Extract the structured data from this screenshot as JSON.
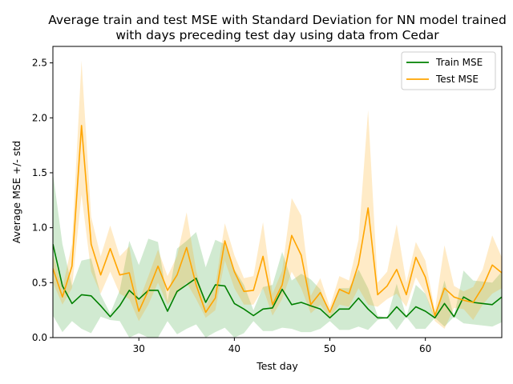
{
  "chart_data": {
    "type": "line",
    "title": "Average train and test MSE with Standard Deviation for NN model trained\nwith days preceding test day using data from Cedar",
    "xlabel": "Test day",
    "ylabel": "Average MSE +/- std",
    "xlim": [
      21,
      68
    ],
    "ylim": [
      0,
      2.65
    ],
    "xticks": [
      30,
      40,
      50,
      60
    ],
    "yticks": [
      0.0,
      0.5,
      1.0,
      1.5,
      2.0,
      2.5
    ],
    "xtick_labels": [
      "30",
      "40",
      "50",
      "60"
    ],
    "ytick_labels": [
      "0.0",
      "0.5",
      "1.0",
      "1.5",
      "2.0",
      "2.5"
    ],
    "legend_position": "top-right",
    "x": [
      21,
      22,
      23,
      24,
      25,
      26,
      27,
      28,
      29,
      30,
      31,
      32,
      33,
      34,
      35,
      36,
      37,
      38,
      39,
      40,
      41,
      42,
      43,
      44,
      45,
      46,
      47,
      48,
      49,
      50,
      51,
      52,
      53,
      54,
      55,
      56,
      57,
      58,
      59,
      60,
      61,
      62,
      63,
      64,
      65,
      66,
      67,
      68
    ],
    "series": [
      {
        "name": "Train MSE",
        "color": "#008000",
        "band_color": "#2ca02c",
        "values": [
          0.85,
          0.47,
          0.31,
          0.39,
          0.38,
          0.29,
          0.19,
          0.29,
          0.43,
          0.35,
          0.43,
          0.43,
          0.24,
          0.42,
          0.48,
          0.54,
          0.32,
          0.48,
          0.47,
          0.31,
          0.26,
          0.2,
          0.26,
          0.27,
          0.44,
          0.3,
          0.32,
          0.29,
          0.26,
          0.18,
          0.26,
          0.26,
          0.36,
          0.26,
          0.18,
          0.18,
          0.28,
          0.19,
          0.28,
          0.24,
          0.18,
          0.31,
          0.19,
          0.37,
          0.32,
          0.31,
          0.3,
          0.37
        ],
        "lower": [
          0.2,
          0.05,
          0.15,
          0.08,
          0.04,
          0.19,
          0.16,
          0.15,
          0.0,
          0.04,
          0.0,
          0.0,
          0.15,
          0.03,
          0.08,
          0.12,
          0.0,
          0.05,
          0.09,
          0.0,
          0.04,
          0.15,
          0.06,
          0.06,
          0.09,
          0.08,
          0.05,
          0.05,
          0.08,
          0.15,
          0.07,
          0.07,
          0.1,
          0.07,
          0.16,
          0.18,
          0.07,
          0.19,
          0.08,
          0.08,
          0.18,
          0.1,
          0.19,
          0.13,
          0.12,
          0.11,
          0.1,
          0.14
        ],
        "upper": [
          1.5,
          0.85,
          0.47,
          0.7,
          0.72,
          0.39,
          0.22,
          0.43,
          0.88,
          0.66,
          0.9,
          0.87,
          0.33,
          0.81,
          0.88,
          0.96,
          0.64,
          0.89,
          0.85,
          0.62,
          0.48,
          0.25,
          0.46,
          0.48,
          0.78,
          0.52,
          0.58,
          0.53,
          0.44,
          0.21,
          0.45,
          0.45,
          0.62,
          0.45,
          0.2,
          0.18,
          0.49,
          0.19,
          0.48,
          0.4,
          0.18,
          0.52,
          0.19,
          0.61,
          0.52,
          0.51,
          0.5,
          0.6
        ]
      },
      {
        "name": "Test MSE",
        "color": "#ffa500",
        "band_color": "#ffa500",
        "values": [
          0.63,
          0.37,
          0.65,
          1.93,
          0.85,
          0.57,
          0.81,
          0.57,
          0.59,
          0.24,
          0.43,
          0.65,
          0.43,
          0.57,
          0.82,
          0.48,
          0.23,
          0.36,
          0.88,
          0.6,
          0.42,
          0.43,
          0.74,
          0.3,
          0.48,
          0.93,
          0.75,
          0.3,
          0.41,
          0.23,
          0.44,
          0.4,
          0.67,
          1.18,
          0.39,
          0.47,
          0.62,
          0.39,
          0.73,
          0.55,
          0.2,
          0.45,
          0.37,
          0.34,
          0.32,
          0.46,
          0.66,
          0.59
        ],
        "lower": [
          0.5,
          0.3,
          0.45,
          1.3,
          0.6,
          0.4,
          0.6,
          0.4,
          0.35,
          0.15,
          0.3,
          0.5,
          0.3,
          0.4,
          0.5,
          0.35,
          0.18,
          0.25,
          0.7,
          0.45,
          0.3,
          0.3,
          0.45,
          0.2,
          0.35,
          0.6,
          0.45,
          0.22,
          0.3,
          0.18,
          0.3,
          0.28,
          0.45,
          0.3,
          0.28,
          0.35,
          0.4,
          0.28,
          0.55,
          0.4,
          0.15,
          0.08,
          0.27,
          0.26,
          0.16,
          0.3,
          0.4,
          0.45
        ],
        "upper": [
          0.76,
          0.45,
          0.85,
          2.52,
          1.1,
          0.74,
          1.02,
          0.74,
          0.83,
          0.33,
          0.56,
          0.8,
          0.56,
          0.74,
          1.14,
          0.61,
          0.28,
          0.47,
          1.04,
          0.75,
          0.54,
          0.56,
          1.05,
          0.4,
          0.61,
          1.27,
          1.11,
          0.38,
          0.54,
          0.28,
          0.56,
          0.52,
          0.89,
          2.07,
          0.5,
          0.6,
          1.03,
          0.5,
          0.87,
          0.7,
          0.25,
          0.84,
          0.47,
          0.42,
          0.46,
          0.62,
          0.93,
          0.73
        ]
      }
    ]
  }
}
